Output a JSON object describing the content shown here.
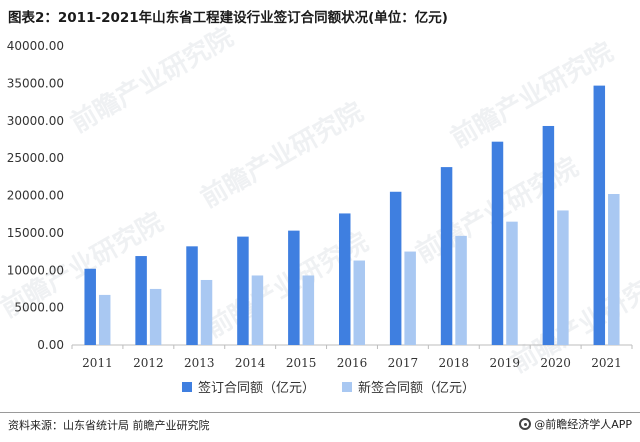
{
  "title": "图表2：2011-2021年山东省工程建设行业签订合同额状况(单位：亿元)",
  "source": "资料来源：山东省统计局 前瞻产业研究院",
  "brand": "@前瞻经济学人APP",
  "watermark": "前瞻产业研究院",
  "colors": {
    "series1": "#3f7fe0",
    "series2": "#a9c8f2",
    "axis": "#bdbdbd"
  },
  "chart_data": {
    "type": "bar",
    "categories": [
      "2011",
      "2012",
      "2013",
      "2014",
      "2015",
      "2016",
      "2017",
      "2018",
      "2019",
      "2020",
      "2021"
    ],
    "series": [
      {
        "name": "签订合同额（亿元）",
        "values": [
          10200,
          11900,
          13200,
          14500,
          15300,
          17600,
          20500,
          23800,
          27200,
          29300,
          34700
        ]
      },
      {
        "name": "新签合同额（亿元）",
        "values": [
          6700,
          7500,
          8700,
          9300,
          9300,
          11300,
          12500,
          14600,
          16500,
          18000,
          20200
        ]
      }
    ],
    "ylim": [
      0,
      40000
    ],
    "yticks": [
      "0.00",
      "5000.00",
      "10000.00",
      "15000.00",
      "20000.00",
      "25000.00",
      "30000.00",
      "35000.00",
      "40000.00"
    ],
    "legend": "bottom",
    "grid": false
  }
}
